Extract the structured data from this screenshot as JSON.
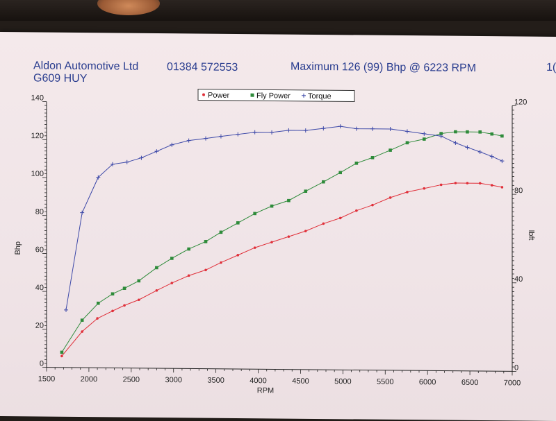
{
  "header": {
    "company": "Aldon Automotive Ltd",
    "phone": "01384 572553",
    "registration": "G609 HUY",
    "max_line": "Maximum 126 (99) Bhp @ 6223 RPM",
    "cut_text": "1("
  },
  "colors": {
    "power": "#e0303a",
    "fly_power": "#2e8b3a",
    "torque": "#3c48a8",
    "axis": "#222222"
  },
  "chart_data": {
    "type": "line",
    "title": "",
    "xlabel": "RPM",
    "ylabel": "Bhp",
    "y2label": "lbft",
    "xlim": [
      1500,
      7000
    ],
    "ylim": [
      0,
      140
    ],
    "y2lim": [
      0,
      120
    ],
    "xticks": [
      "1500",
      "2000",
      "2500",
      "3000",
      "3500",
      "4000",
      "4500",
      "5000",
      "5500",
      "6000",
      "6500",
      "7000"
    ],
    "yticks": [
      "0",
      "20",
      "40",
      "60",
      "80",
      "100",
      "120",
      "140"
    ],
    "y2ticks": [
      "0",
      "40",
      "80",
      "120"
    ],
    "legend": {
      "placement": "top-center",
      "items": [
        "Power",
        "Fly Power",
        "Torque"
      ]
    },
    "series": [
      {
        "name": "Power",
        "marker": "dot",
        "axis": "left",
        "x": [
          1680,
          1920,
          2100,
          2280,
          2420,
          2590,
          2800,
          2980,
          3180,
          3380,
          3560,
          3760,
          3960,
          4160,
          4360,
          4560,
          4770,
          4970,
          5160,
          5350,
          5560,
          5760,
          5960,
          6160,
          6330,
          6470,
          6620,
          6760,
          6880
        ],
        "y": [
          6,
          19,
          26,
          30,
          33,
          36,
          41,
          45,
          49,
          52,
          56,
          60,
          64,
          67,
          70,
          73,
          77,
          80,
          84,
          87,
          91,
          94,
          96,
          98,
          99,
          99,
          99,
          98,
          97
        ]
      },
      {
        "name": "Fly Power",
        "marker": "square",
        "axis": "left",
        "x": [
          1680,
          1920,
          2110,
          2280,
          2420,
          2590,
          2800,
          2980,
          3180,
          3380,
          3560,
          3760,
          3960,
          4160,
          4360,
          4560,
          4770,
          4970,
          5160,
          5350,
          5560,
          5760,
          5960,
          6160,
          6330,
          6470,
          6620,
          6760,
          6880
        ],
        "y": [
          8,
          25,
          34,
          39,
          42,
          46,
          53,
          58,
          63,
          67,
          72,
          77,
          82,
          86,
          89,
          94,
          99,
          104,
          109,
          112,
          116,
          120,
          122,
          125,
          126,
          126,
          126,
          125,
          124
        ]
      },
      {
        "name": "Torque",
        "marker": "plus",
        "axis": "right",
        "x": [
          1730,
          1920,
          2110,
          2280,
          2450,
          2620,
          2800,
          2980,
          3180,
          3380,
          3560,
          3760,
          3960,
          4160,
          4360,
          4560,
          4770,
          4970,
          5160,
          5350,
          5560,
          5760,
          5960,
          6160,
          6330,
          6470,
          6620,
          6760,
          6880
        ],
        "y": [
          26,
          70,
          86,
          92,
          93,
          95,
          98,
          101,
          103,
          104,
          105,
          106,
          107,
          107,
          108,
          108,
          109,
          110,
          109,
          109,
          109,
          108,
          107,
          106,
          103,
          101,
          99,
          97,
          95
        ]
      }
    ]
  }
}
